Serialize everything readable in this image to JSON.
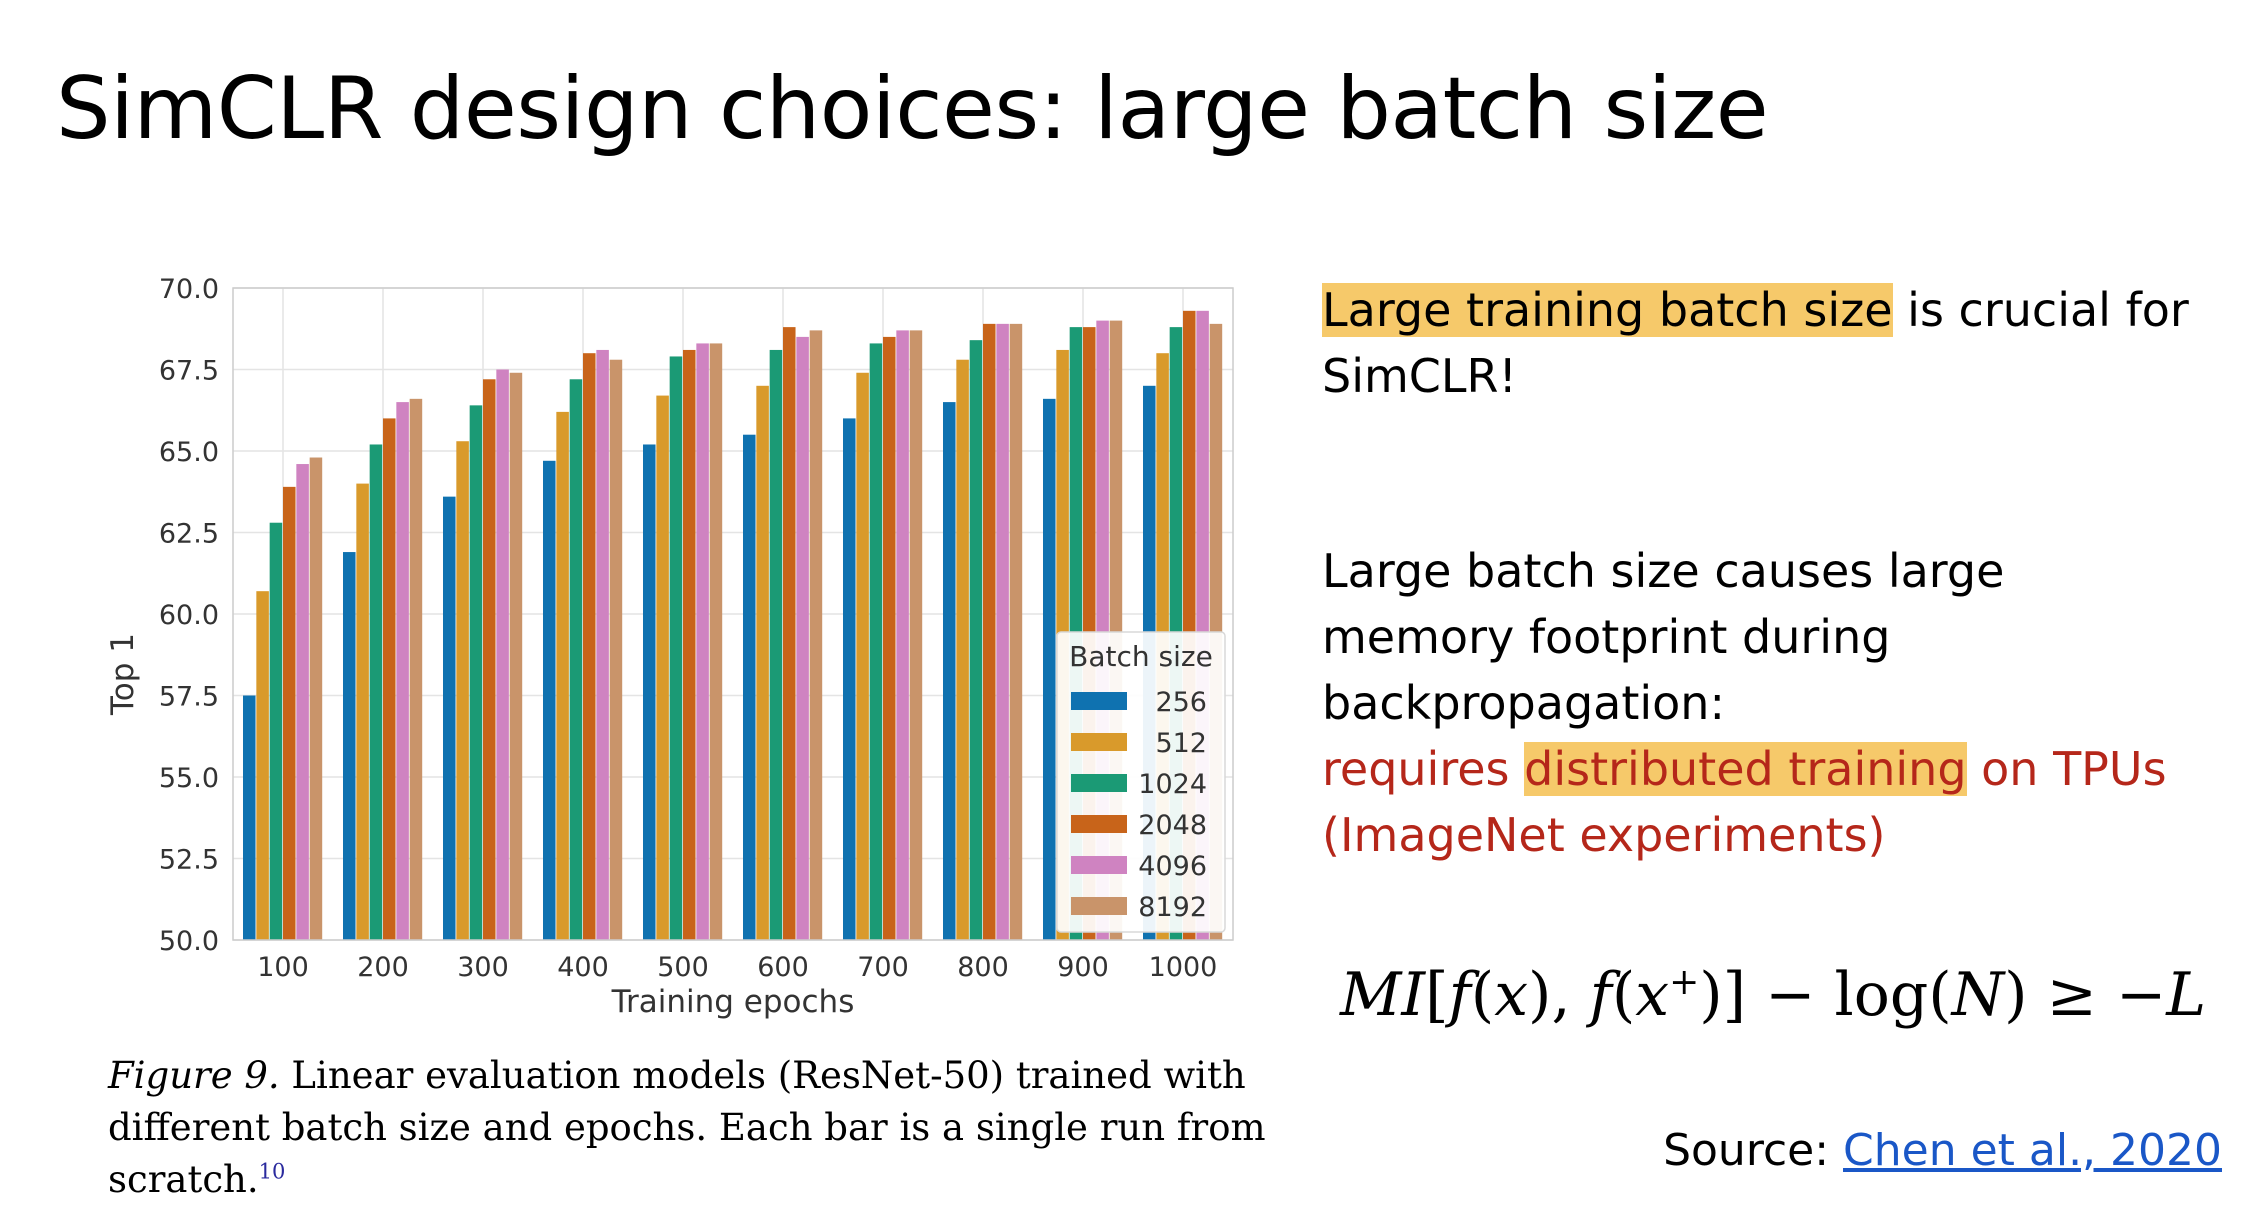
{
  "slide": {
    "title": "SimCLR design choices: large batch size"
  },
  "text_panel": {
    "para1_highlight": "Large training batch size",
    "para1_rest": " is crucial for SimCLR!",
    "para2_black": "Large batch size causes large memory footprint during backpropagation:",
    "para2_red_before": "requires ",
    "para2_red_highlight": "distributed training",
    "para2_red_after": " on TPUs (ImageNet experiments)",
    "formula_image": "MI[f(x), f(x⁺)] − log(N) ≥ −L"
  },
  "figure_caption": {
    "label": "Figure 9.",
    "text": " Linear evaluation models (ResNet-50) trained with different batch size and epochs. Each bar is a single run from scratch.",
    "footnote": "10"
  },
  "source": {
    "prefix": "Source: ",
    "link_text": "Chen et al., 2020"
  },
  "chart_data": {
    "type": "bar",
    "xlabel": "Training epochs",
    "ylabel": "Top 1",
    "ylim": [
      50.0,
      70.0
    ],
    "yticks": [
      "50.0",
      "52.5",
      "55.0",
      "57.5",
      "60.0",
      "62.5",
      "65.0",
      "67.5",
      "70.0"
    ],
    "categories": [
      "100",
      "200",
      "300",
      "400",
      "500",
      "600",
      "700",
      "800",
      "900",
      "1000"
    ],
    "grid": true,
    "legend_title": "Batch size",
    "legend_position": "lower-right",
    "series": [
      {
        "name": "256",
        "color": "#0f72b0",
        "values": [
          57.5,
          61.9,
          63.6,
          64.7,
          65.2,
          65.5,
          66.0,
          66.5,
          66.6,
          67.0
        ]
      },
      {
        "name": "512",
        "color": "#d99a2b",
        "values": [
          60.7,
          64.0,
          65.3,
          66.2,
          66.7,
          67.0,
          67.4,
          67.8,
          68.1,
          68.0
        ]
      },
      {
        "name": "1024",
        "color": "#1b9a75",
        "values": [
          62.8,
          65.2,
          66.4,
          67.2,
          67.9,
          68.1,
          68.3,
          68.4,
          68.8,
          68.8
        ]
      },
      {
        "name": "2048",
        "color": "#c8641a",
        "values": [
          63.9,
          66.0,
          67.2,
          68.0,
          68.1,
          68.8,
          68.5,
          68.9,
          68.8,
          69.3
        ]
      },
      {
        "name": "4096",
        "color": "#cf83c1",
        "values": [
          64.6,
          66.5,
          67.5,
          68.1,
          68.3,
          68.5,
          68.7,
          68.9,
          69.0,
          69.3
        ]
      },
      {
        "name": "8192",
        "color": "#c9946a",
        "values": [
          64.8,
          66.6,
          67.4,
          67.8,
          68.3,
          68.7,
          68.7,
          68.9,
          69.0,
          68.9
        ]
      }
    ]
  }
}
